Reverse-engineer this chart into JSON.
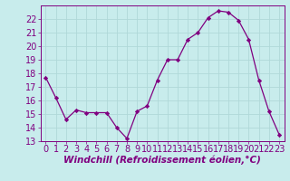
{
  "x": [
    0,
    1,
    2,
    3,
    4,
    5,
    6,
    7,
    8,
    9,
    10,
    11,
    12,
    13,
    14,
    15,
    16,
    17,
    18,
    19,
    20,
    21,
    22,
    23
  ],
  "y": [
    17.7,
    16.2,
    14.6,
    15.3,
    15.1,
    15.1,
    15.1,
    14.0,
    13.2,
    15.2,
    15.6,
    17.5,
    19.0,
    19.0,
    20.5,
    21.0,
    22.1,
    22.6,
    22.5,
    21.9,
    20.5,
    17.5,
    15.2,
    13.5
  ],
  "line_color": "#800080",
  "marker": "D",
  "marker_size": 2.2,
  "bg_color": "#c8ecec",
  "grid_color": "#b0d8d8",
  "xlabel": "Windchill (Refroidissement éolien,°C)",
  "xlabel_color": "#800080",
  "xlabel_fontsize": 7.5,
  "tick_color": "#800080",
  "tick_fontsize": 7.0,
  "ylim": [
    13,
    23
  ],
  "xlim_min": -0.5,
  "xlim_max": 23.5,
  "yticks": [
    13,
    14,
    15,
    16,
    17,
    18,
    19,
    20,
    21,
    22
  ],
  "xticks": [
    0,
    1,
    2,
    3,
    4,
    5,
    6,
    7,
    8,
    9,
    10,
    11,
    12,
    13,
    14,
    15,
    16,
    17,
    18,
    19,
    20,
    21,
    22,
    23
  ]
}
